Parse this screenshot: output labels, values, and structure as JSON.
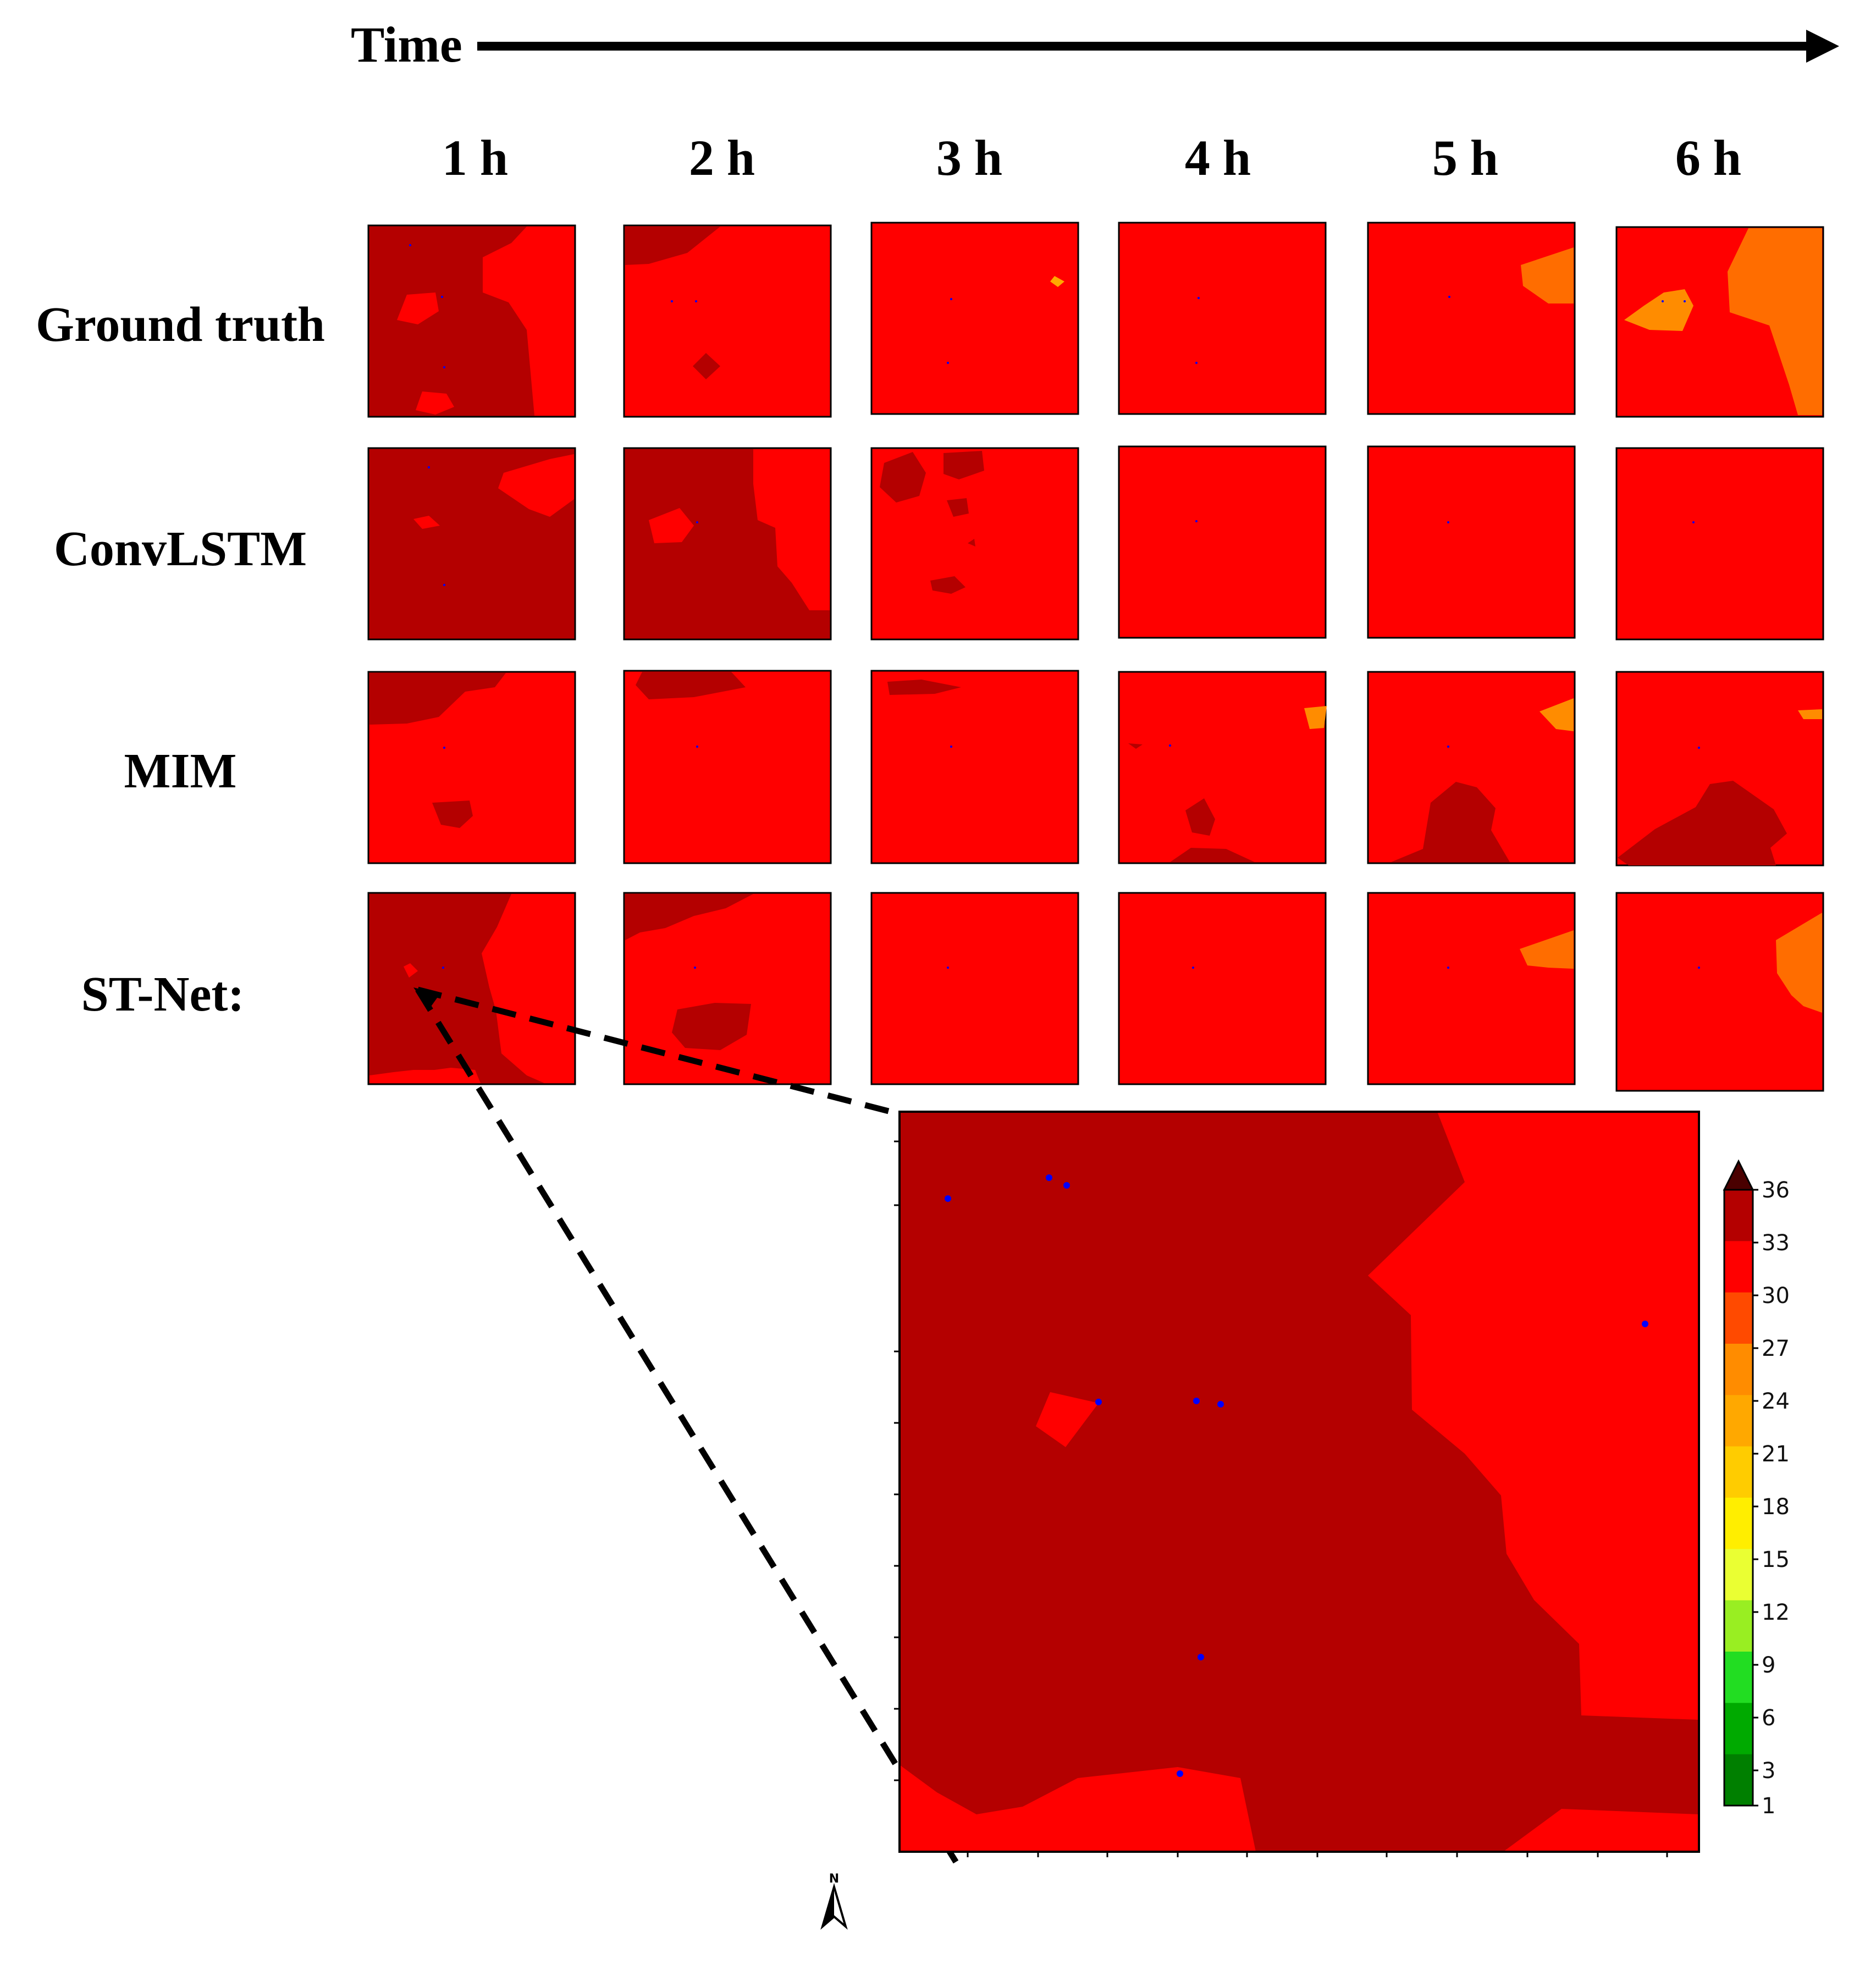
{
  "header": {
    "time_label": "Time"
  },
  "columns": [
    "1 h",
    "2 h",
    "3 h",
    "4 h",
    "5 h",
    "6 h"
  ],
  "rows": [
    "Ground truth",
    "ConvLSTM",
    "MIM",
    "ST-Net:"
  ],
  "colorbar": {
    "ticks": [
      "36",
      "33",
      "30",
      "27",
      "24",
      "21",
      "18",
      "15",
      "12",
      "9",
      "6",
      "3",
      "1"
    ],
    "colors": [
      "#b40000",
      "#ff0000",
      "#ff4a00",
      "#ff8c00",
      "#ffa800",
      "#ffcc00",
      "#ffee00",
      "#eaff33",
      "#99ee22",
      "#22dd22",
      "#00aa00",
      "#007f00"
    ],
    "extend_color": "#4a0000"
  },
  "palette": {
    "dark_red": "#b40000",
    "red": "#ff0000",
    "orange": "#ff6d00",
    "light_orange": "#ff9900",
    "station_dot": "#0000ff"
  },
  "compass": {
    "label": "N"
  }
}
